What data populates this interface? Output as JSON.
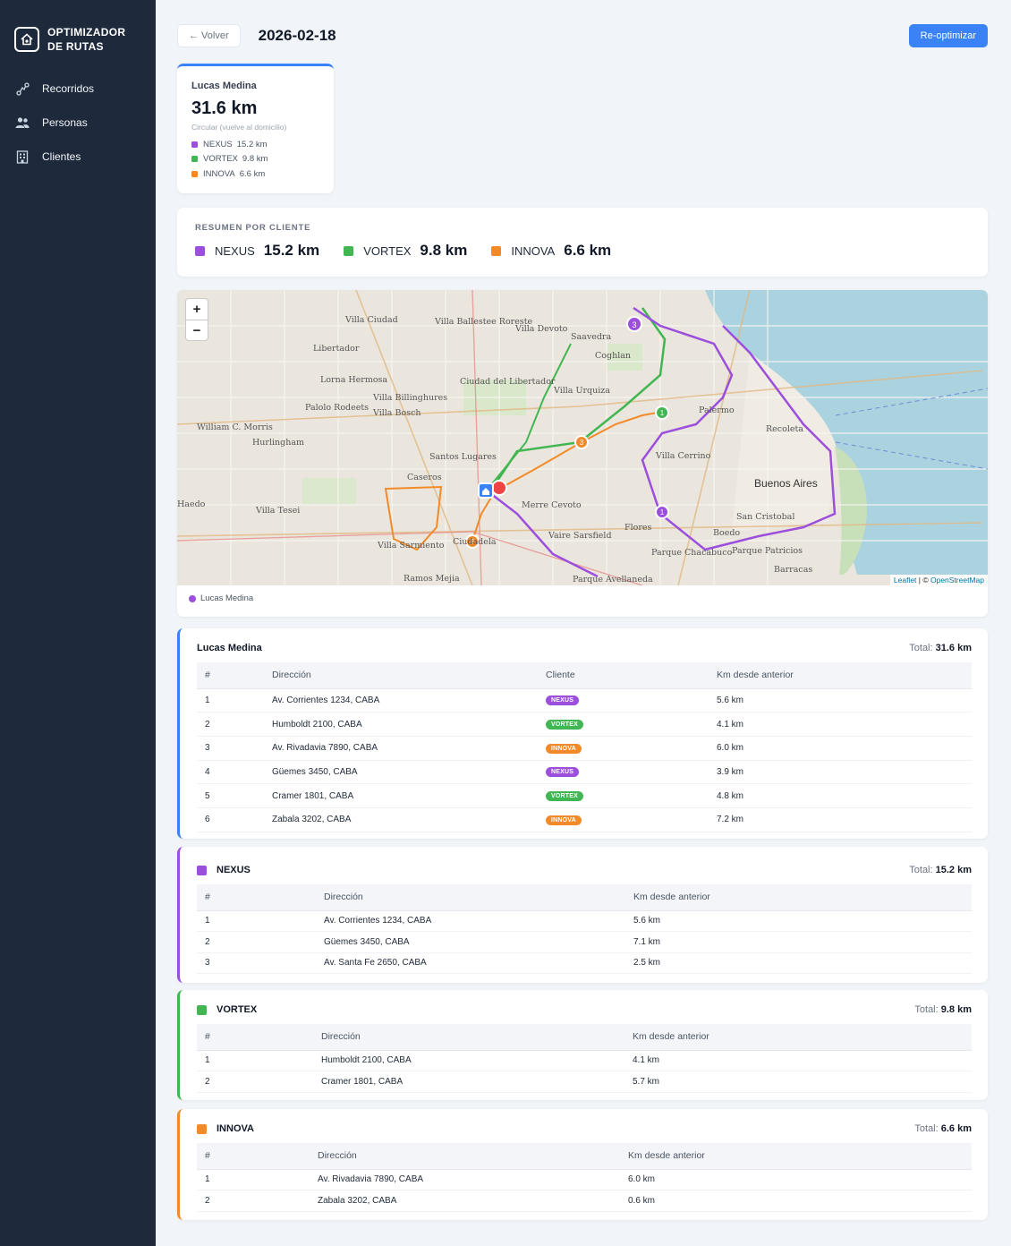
{
  "sidebar": {
    "brand": [
      "OPTIMIZADOR",
      "DE RUTAS"
    ],
    "items": [
      {
        "label": "Recorridos",
        "icon": "route-icon"
      },
      {
        "label": "Personas",
        "icon": "people-icon"
      },
      {
        "label": "Clientes",
        "icon": "building-icon"
      }
    ]
  },
  "header": {
    "back_label": "← Volver",
    "date": "2026-02-18",
    "reoptimize_label": "Re-optimizar"
  },
  "person_card": {
    "name": "Lucas Medina",
    "total": "31.6 km",
    "note": "Circular (vuelve al domicilio)",
    "clients": [
      {
        "name": "NEXUS",
        "km": "15.2 km",
        "color": "#9b4fdc"
      },
      {
        "name": "VORTEX",
        "km": "9.8 km",
        "color": "#42b653"
      },
      {
        "name": "INNOVA",
        "km": "6.6 km",
        "color": "#f28a2a"
      }
    ]
  },
  "summary": {
    "title": "RESUMEN POR CLIENTE",
    "items": [
      {
        "name": "NEXUS",
        "km": "15.2 km",
        "color": "#9b4fdc"
      },
      {
        "name": "VORTEX",
        "km": "9.8 km",
        "color": "#42b653"
      },
      {
        "name": "INNOVA",
        "km": "6.6 km",
        "color": "#f28a2a"
      }
    ]
  },
  "map": {
    "zoom_in": "+",
    "zoom_out": "−",
    "attribution_leaflet": "Leaflet",
    "attribution_sep": " | © ",
    "attribution_osm": "OpenStreetMap",
    "legend_person": "Lucas Medina",
    "legend_color": "#9b4fdc",
    "labels": [
      "Villa Ciudad",
      "Villa Ballestee Roreste",
      "Villa Devoto",
      "Saavedra",
      "Libertador",
      "Lorna Hermosa",
      "Villa Billinghures",
      "Villa Bosch",
      "Palolo Rodeets",
      "Ciudad del Libertador",
      "Villa Urquiza",
      "Coghlan",
      "William C. Morris",
      "Hurlingham",
      "Santos Lugares",
      "Caseros",
      "Villa Tesei",
      "Merre Cevoto",
      "Villa Cerrino",
      "Palermo",
      "Recoleta",
      "Buenos Aires",
      "Villa Sarmiento",
      "Ramos Mejia",
      "Parque Avellaneda",
      "Parque Chacabuco",
      "Parque Patricios",
      "Barracas",
      "Flores",
      "Boedo",
      "San Cristobal",
      "Vaire Sarsfield",
      "Ciudadela",
      "Haedo"
    ]
  },
  "route_card": {
    "title": "Lucas Medina",
    "total_label": "Total:",
    "total_value": "31.6 km",
    "columns": [
      "#",
      "Dirección",
      "Cliente",
      "Km desde anterior"
    ],
    "rows": [
      {
        "n": "1",
        "address": "Av. Corrientes 1234, CABA",
        "client": "NEXUS",
        "km": "5.6 km",
        "color": "#9b4fdc"
      },
      {
        "n": "2",
        "address": "Humboldt 2100, CABA",
        "client": "VORTEX",
        "km": "4.1 km",
        "color": "#42b653"
      },
      {
        "n": "3",
        "address": "Av. Rivadavia 7890, CABA",
        "client": "INNOVA",
        "km": "6.0 km",
        "color": "#f28a2a"
      },
      {
        "n": "4",
        "address": "Güemes 3450, CABA",
        "client": "NEXUS",
        "km": "3.9 km",
        "color": "#9b4fdc"
      },
      {
        "n": "5",
        "address": "Cramer 1801, CABA",
        "client": "VORTEX",
        "km": "4.8 km",
        "color": "#42b653"
      },
      {
        "n": "6",
        "address": "Zabala 3202, CABA",
        "client": "INNOVA",
        "km": "7.2 km",
        "color": "#f28a2a"
      }
    ]
  },
  "client_cards": {
    "nexus": {
      "title": "NEXUS",
      "color": "#9b4fdc",
      "total_label": "Total:",
      "total_value": "15.2 km",
      "columns": [
        "#",
        "Dirección",
        "Km desde anterior"
      ],
      "rows": [
        {
          "n": "1",
          "address": "Av. Corrientes 1234, CABA",
          "km": "5.6 km"
        },
        {
          "n": "2",
          "address": "Güemes 3450, CABA",
          "km": "7.1 km"
        },
        {
          "n": "3",
          "address": "Av. Santa Fe 2650, CABA",
          "km": "2.5 km"
        }
      ]
    },
    "vortex": {
      "title": "VORTEX",
      "color": "#42b653",
      "total_label": "Total:",
      "total_value": "9.8 km",
      "columns": [
        "#",
        "Dirección",
        "Km desde anterior"
      ],
      "rows": [
        {
          "n": "1",
          "address": "Humboldt 2100, CABA",
          "km": "4.1 km"
        },
        {
          "n": "2",
          "address": "Cramer 1801, CABA",
          "km": "5.7 km"
        }
      ]
    },
    "innova": {
      "title": "INNOVA",
      "color": "#f28a2a",
      "total_label": "Total:",
      "total_value": "6.6 km",
      "columns": [
        "#",
        "Dirección",
        "Km desde anterior"
      ],
      "rows": [
        {
          "n": "1",
          "address": "Av. Rivadavia 7890, CABA",
          "km": "6.0 km"
        },
        {
          "n": "2",
          "address": "Zabala 3202, CABA",
          "km": "0.6 km"
        }
      ]
    }
  }
}
